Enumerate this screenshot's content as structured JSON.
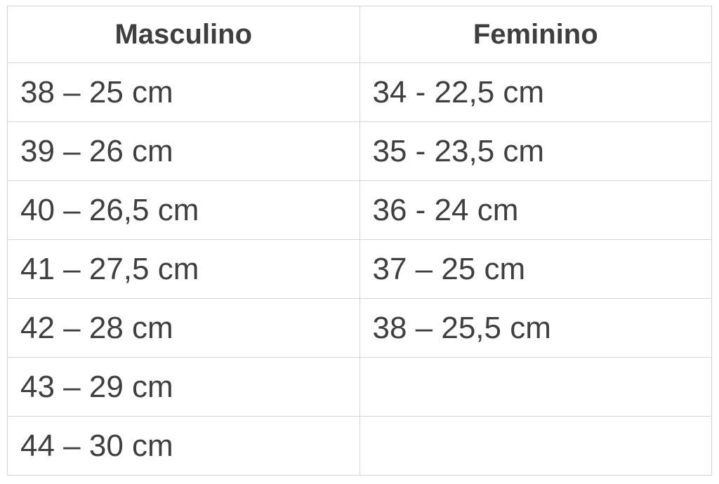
{
  "table": {
    "headers": {
      "masculino": "Masculino",
      "feminino": "Feminino"
    },
    "rows": [
      {
        "masculino": "38 – 25 cm",
        "feminino": "34 - 22,5 cm"
      },
      {
        "masculino": "39 – 26 cm",
        "feminino": "35 - 23,5 cm"
      },
      {
        "masculino": "40 – 26,5 cm",
        "feminino": "36 - 24 cm"
      },
      {
        "masculino": "41 – 27,5 cm",
        "feminino": "37 – 25 cm"
      },
      {
        "masculino": "42 – 28 cm",
        "feminino": "38 – 25,5 cm"
      },
      {
        "masculino": "43 – 29 cm",
        "feminino": ""
      },
      {
        "masculino": "44 – 30 cm",
        "feminino": ""
      }
    ],
    "colors": {
      "text": "#3f3f3f",
      "border": "#d5d5d5",
      "background": "#ffffff"
    }
  },
  "chart_data": {
    "type": "table",
    "title": "",
    "columns": [
      "Masculino",
      "Feminino"
    ],
    "rows": [
      [
        "38 – 25 cm",
        "34 - 22,5 cm"
      ],
      [
        "39 – 26 cm",
        "35 - 23,5 cm"
      ],
      [
        "40 – 26,5 cm",
        "36 - 24 cm"
      ],
      [
        "41 – 27,5 cm",
        "37 – 25 cm"
      ],
      [
        "42 – 28 cm",
        "38 – 25,5 cm"
      ],
      [
        "43 – 29 cm",
        ""
      ],
      [
        "44 – 30 cm",
        ""
      ]
    ],
    "notes": "Shoe size to foot length conversion; left column male sizes 38-44, right column female sizes 34-38; decimal commas; last two female cells empty"
  }
}
